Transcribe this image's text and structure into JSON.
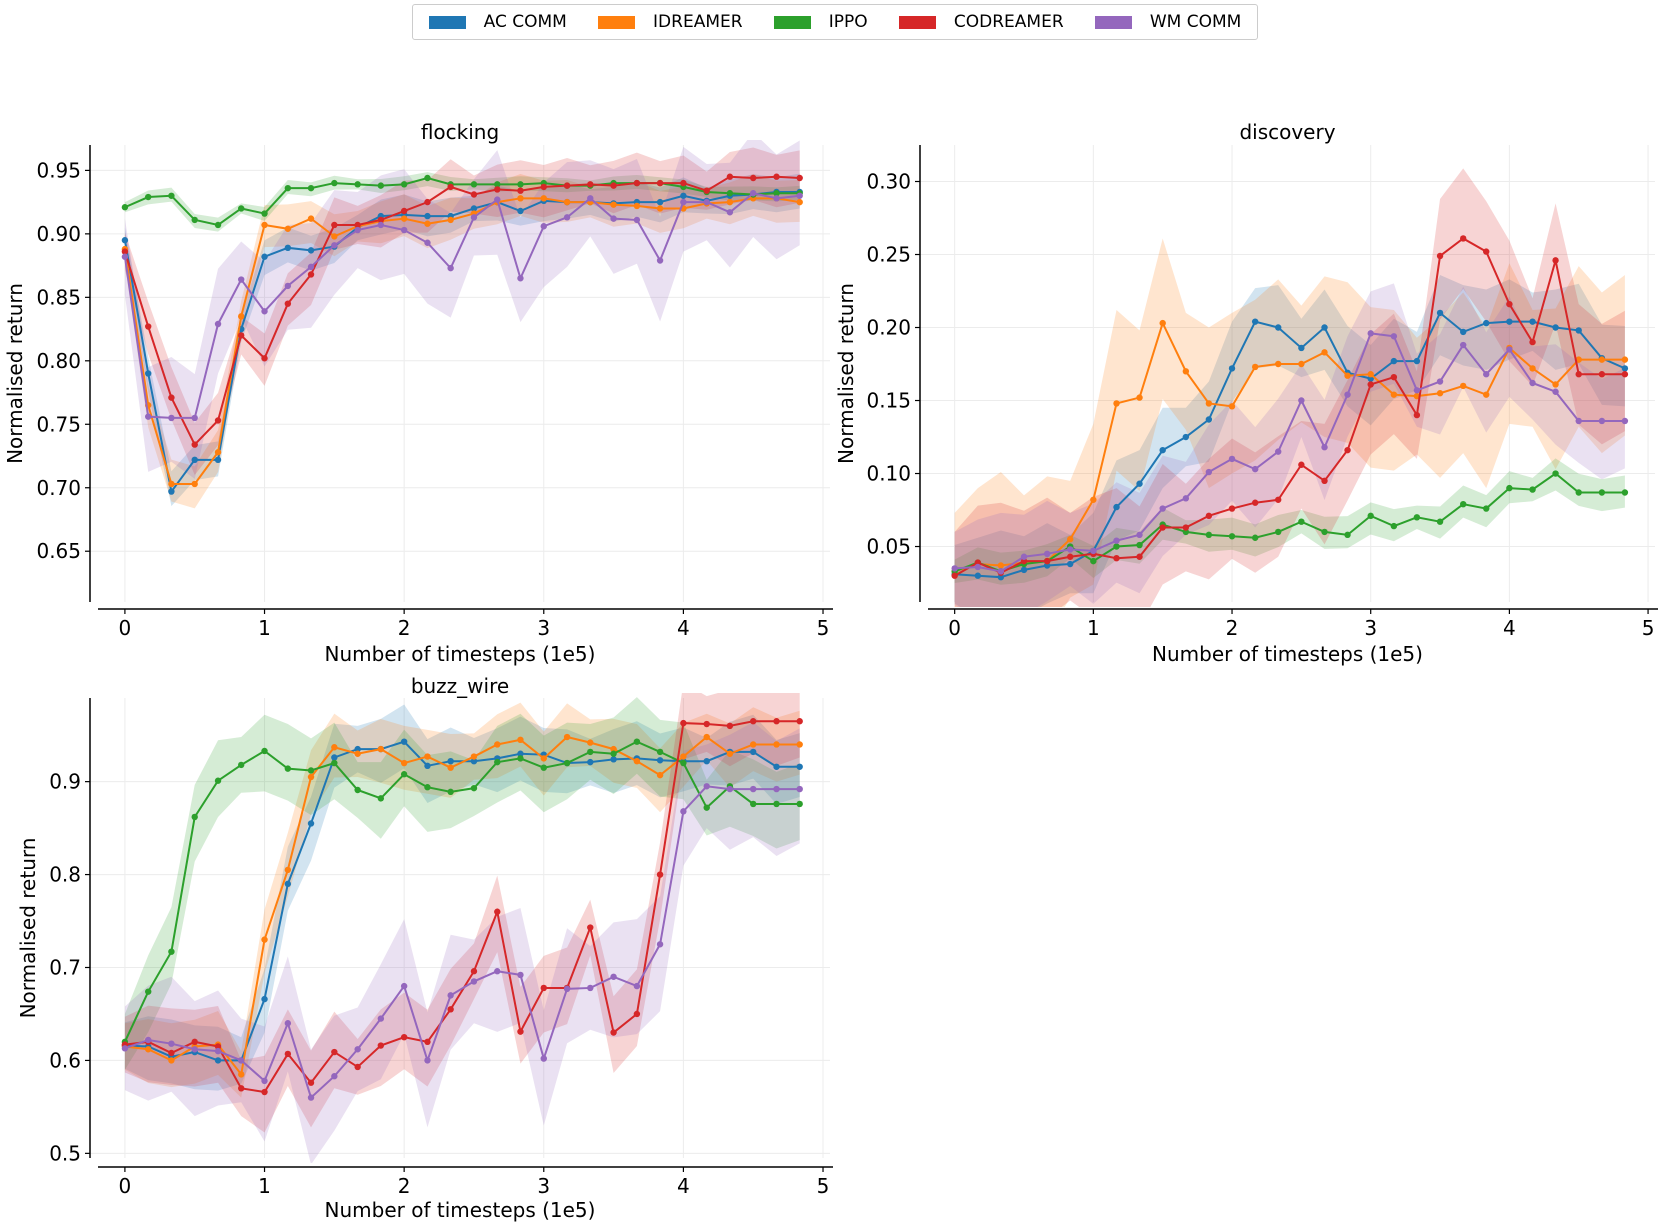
{
  "legend": [
    {
      "name": "AC COMM",
      "color": "#1f77b4"
    },
    {
      "name": "IDREAMER",
      "color": "#ff7f0e"
    },
    {
      "name": "IPPO",
      "color": "#2ca02c"
    },
    {
      "name": "CODREAMER",
      "color": "#d62728"
    },
    {
      "name": "WM COMM",
      "color": "#9467bd"
    }
  ],
  "chart_data": [
    {
      "type": "line",
      "title": "flocking",
      "xlabel": "Number of timesteps (1e5)",
      "ylabel": "Normalised return",
      "xlim": [
        -0.25,
        5.05
      ],
      "ylim": [
        0.61,
        0.97
      ],
      "xticks": [
        0,
        1,
        2,
        3,
        4,
        5
      ],
      "yticks": [
        0.65,
        0.7,
        0.75,
        0.8,
        0.85,
        0.9,
        0.95
      ],
      "ytick_labels": [
        "0.65",
        "0.70",
        "0.75",
        "0.80",
        "0.85",
        "0.90",
        "0.95"
      ],
      "x": [
        0,
        0.167,
        0.333,
        0.5,
        0.667,
        0.833,
        1.0,
        1.167,
        1.333,
        1.5,
        1.667,
        1.833,
        2.0,
        2.167,
        2.333,
        2.5,
        2.667,
        2.833,
        3.0,
        3.167,
        3.333,
        3.5,
        3.667,
        3.833,
        4.0,
        4.167,
        4.333,
        4.5,
        4.667,
        4.833
      ],
      "series": [
        {
          "name": "AC COMM",
          "color": "#1f77b4",
          "band": 0.01,
          "values": [
            0.895,
            0.79,
            0.697,
            0.722,
            0.722,
            0.825,
            0.882,
            0.889,
            0.887,
            0.89,
            0.905,
            0.914,
            0.915,
            0.914,
            0.914,
            0.92,
            0.925,
            0.918,
            0.926,
            0.925,
            0.925,
            0.924,
            0.925,
            0.925,
            0.93,
            0.926,
            0.93,
            0.931,
            0.933,
            0.933
          ]
        },
        {
          "name": "IDREAMER",
          "color": "#ff7f0e",
          "band": 0.012,
          "values": [
            0.888,
            0.765,
            0.703,
            0.703,
            0.728,
            0.835,
            0.907,
            0.904,
            0.912,
            0.898,
            0.906,
            0.91,
            0.912,
            0.908,
            0.911,
            0.916,
            0.925,
            0.928,
            0.928,
            0.925,
            0.925,
            0.923,
            0.922,
            0.92,
            0.92,
            0.924,
            0.925,
            0.928,
            0.928,
            0.925
          ]
        },
        {
          "name": "IPPO",
          "color": "#2ca02c",
          "band": 0.004,
          "values": [
            0.921,
            0.929,
            0.93,
            0.911,
            0.907,
            0.92,
            0.916,
            0.936,
            0.936,
            0.94,
            0.939,
            0.938,
            0.939,
            0.944,
            0.939,
            0.939,
            0.939,
            0.939,
            0.94,
            0.938,
            0.938,
            0.94,
            0.94,
            0.94,
            0.937,
            0.933,
            0.932,
            0.931,
            0.932,
            0.932
          ]
        },
        {
          "name": "CODREAMER",
          "color": "#d62728",
          "band": 0.015,
          "values": [
            0.886,
            0.827,
            0.771,
            0.734,
            0.753,
            0.82,
            0.802,
            0.845,
            0.868,
            0.907,
            0.907,
            0.911,
            0.918,
            0.925,
            0.937,
            0.931,
            0.935,
            0.934,
            0.937,
            0.938,
            0.939,
            0.938,
            0.94,
            0.94,
            0.94,
            0.934,
            0.945,
            0.944,
            0.945,
            0.944
          ]
        },
        {
          "name": "WM COMM",
          "color": "#9467bd",
          "band": 0.03,
          "values": [
            0.882,
            0.756,
            0.755,
            0.755,
            0.829,
            0.864,
            0.839,
            0.859,
            0.874,
            0.891,
            0.903,
            0.907,
            0.903,
            0.893,
            0.873,
            0.913,
            0.927,
            0.865,
            0.906,
            0.913,
            0.928,
            0.912,
            0.911,
            0.879,
            0.925,
            0.925,
            0.917,
            0.932,
            0.928,
            0.93
          ]
        }
      ]
    },
    {
      "type": "line",
      "title": "discovery",
      "xlabel": "Number of timesteps (1e5)",
      "ylabel": "Normalised return",
      "xlim": [
        -0.25,
        5.05
      ],
      "ylim": [
        0.012,
        0.325
      ],
      "xticks": [
        0,
        1,
        2,
        3,
        4,
        5
      ],
      "yticks": [
        0.05,
        0.1,
        0.15,
        0.2,
        0.25,
        0.3
      ],
      "ytick_labels": [
        "0.05",
        "0.10",
        "0.15",
        "0.20",
        "0.25",
        "0.30"
      ],
      "x": [
        0,
        0.167,
        0.333,
        0.5,
        0.667,
        0.833,
        1.0,
        1.167,
        1.333,
        1.5,
        1.667,
        1.833,
        2.0,
        2.167,
        2.333,
        2.5,
        2.667,
        2.833,
        3.0,
        3.167,
        3.333,
        3.5,
        3.667,
        3.833,
        4.0,
        4.167,
        4.333,
        4.5,
        4.667,
        4.833
      ],
      "series": [
        {
          "name": "AC COMM",
          "color": "#1f77b4",
          "band": 0.02,
          "values": [
            0.031,
            0.03,
            0.029,
            0.034,
            0.037,
            0.038,
            0.047,
            0.077,
            0.093,
            0.116,
            0.125,
            0.137,
            0.172,
            0.204,
            0.2,
            0.186,
            0.2,
            0.169,
            0.165,
            0.177,
            0.177,
            0.21,
            0.197,
            0.203,
            0.204,
            0.204,
            0.2,
            0.198,
            0.179,
            0.172
          ]
        },
        {
          "name": "IDREAMER",
          "color": "#ff7f0e",
          "band": 0.04,
          "values": [
            0.033,
            0.038,
            0.037,
            0.039,
            0.04,
            0.055,
            0.082,
            0.148,
            0.152,
            0.203,
            0.17,
            0.148,
            0.146,
            0.173,
            0.175,
            0.175,
            0.183,
            0.167,
            0.168,
            0.154,
            0.153,
            0.155,
            0.16,
            0.154,
            0.186,
            0.172,
            0.161,
            0.178,
            0.178,
            0.178
          ]
        },
        {
          "name": "IPPO",
          "color": "#2ca02c",
          "band": 0.008,
          "values": [
            0.033,
            0.039,
            0.033,
            0.038,
            0.04,
            0.05,
            0.04,
            0.05,
            0.051,
            0.065,
            0.06,
            0.058,
            0.057,
            0.056,
            0.06,
            0.067,
            0.06,
            0.058,
            0.071,
            0.064,
            0.07,
            0.067,
            0.079,
            0.076,
            0.09,
            0.089,
            0.1,
            0.087,
            0.087,
            0.087
          ]
        },
        {
          "name": "CODREAMER",
          "color": "#d62728",
          "band": 0.03,
          "values": [
            0.03,
            0.039,
            0.032,
            0.04,
            0.04,
            0.043,
            0.045,
            0.042,
            0.043,
            0.063,
            0.063,
            0.071,
            0.076,
            0.08,
            0.082,
            0.106,
            0.095,
            0.116,
            0.161,
            0.166,
            0.14,
            0.249,
            0.261,
            0.252,
            0.216,
            0.19,
            0.246,
            0.168,
            0.168,
            0.168
          ]
        },
        {
          "name": "WM COMM",
          "color": "#9467bd",
          "band": 0.025,
          "values": [
            0.035,
            0.036,
            0.033,
            0.043,
            0.045,
            0.048,
            0.047,
            0.054,
            0.058,
            0.076,
            0.083,
            0.101,
            0.11,
            0.103,
            0.115,
            0.15,
            0.118,
            0.154,
            0.196,
            0.194,
            0.157,
            0.163,
            0.188,
            0.168,
            0.185,
            0.162,
            0.156,
            0.136,
            0.136,
            0.136
          ]
        }
      ]
    },
    {
      "type": "line",
      "title": "buzz_wire",
      "xlabel": "Number of timesteps (1e5)",
      "ylabel": "Normalised return",
      "xlim": [
        -0.25,
        5.05
      ],
      "ylim": [
        0.495,
        0.99
      ],
      "xticks": [
        0,
        1,
        2,
        3,
        4,
        5
      ],
      "yticks": [
        0.5,
        0.6,
        0.7,
        0.8,
        0.9
      ],
      "ytick_labels": [
        "0.5",
        "0.6",
        "0.7",
        "0.8",
        "0.9"
      ],
      "x": [
        0,
        0.167,
        0.333,
        0.5,
        0.667,
        0.833,
        1.0,
        1.167,
        1.333,
        1.5,
        1.667,
        1.833,
        2.0,
        2.167,
        2.333,
        2.5,
        2.667,
        2.833,
        3.0,
        3.167,
        3.333,
        3.5,
        3.667,
        3.833,
        4.0,
        4.167,
        4.333,
        4.5,
        4.667,
        4.833
      ],
      "series": [
        {
          "name": "AC COMM",
          "color": "#1f77b4",
          "band": 0.025,
          "values": [
            0.616,
            0.615,
            0.604,
            0.609,
            0.6,
            0.6,
            0.666,
            0.79,
            0.855,
            0.926,
            0.935,
            0.935,
            0.943,
            0.917,
            0.922,
            0.922,
            0.925,
            0.93,
            0.929,
            0.92,
            0.921,
            0.924,
            0.925,
            0.923,
            0.922,
            0.922,
            0.932,
            0.932,
            0.916,
            0.916
          ]
        },
        {
          "name": "IDREAMER",
          "color": "#ff7f0e",
          "band": 0.025,
          "values": [
            0.615,
            0.612,
            0.6,
            0.615,
            0.617,
            0.585,
            0.73,
            0.805,
            0.905,
            0.937,
            0.93,
            0.935,
            0.92,
            0.927,
            0.915,
            0.927,
            0.94,
            0.945,
            0.925,
            0.948,
            0.942,
            0.935,
            0.922,
            0.907,
            0.927,
            0.948,
            0.93,
            0.94,
            0.94,
            0.94
          ]
        },
        {
          "name": "IPPO",
          "color": "#2ca02c",
          "band": 0.03,
          "values": [
            0.62,
            0.674,
            0.717,
            0.862,
            0.901,
            0.918,
            0.933,
            0.914,
            0.912,
            0.92,
            0.891,
            0.882,
            0.908,
            0.894,
            0.889,
            0.893,
            0.921,
            0.925,
            0.915,
            0.92,
            0.932,
            0.93,
            0.943,
            0.932,
            0.92,
            0.872,
            0.895,
            0.876,
            0.876,
            0.876
          ]
        },
        {
          "name": "CODREAMER",
          "color": "#d62728",
          "band": 0.03,
          "values": [
            0.617,
            0.62,
            0.608,
            0.62,
            0.615,
            0.57,
            0.566,
            0.607,
            0.576,
            0.609,
            0.593,
            0.616,
            0.625,
            0.62,
            0.655,
            0.696,
            0.76,
            0.631,
            0.678,
            0.678,
            0.743,
            0.63,
            0.65,
            0.8,
            0.963,
            0.962,
            0.96,
            0.965,
            0.965,
            0.965
          ]
        },
        {
          "name": "WM COMM",
          "color": "#9467bd",
          "band": 0.045,
          "values": [
            0.613,
            0.622,
            0.618,
            0.612,
            0.61,
            0.6,
            0.578,
            0.64,
            0.56,
            0.583,
            0.612,
            0.645,
            0.68,
            0.6,
            0.67,
            0.685,
            0.696,
            0.692,
            0.602,
            0.677,
            0.678,
            0.69,
            0.68,
            0.725,
            0.868,
            0.895,
            0.892,
            0.892,
            0.892,
            0.892
          ]
        }
      ]
    }
  ]
}
